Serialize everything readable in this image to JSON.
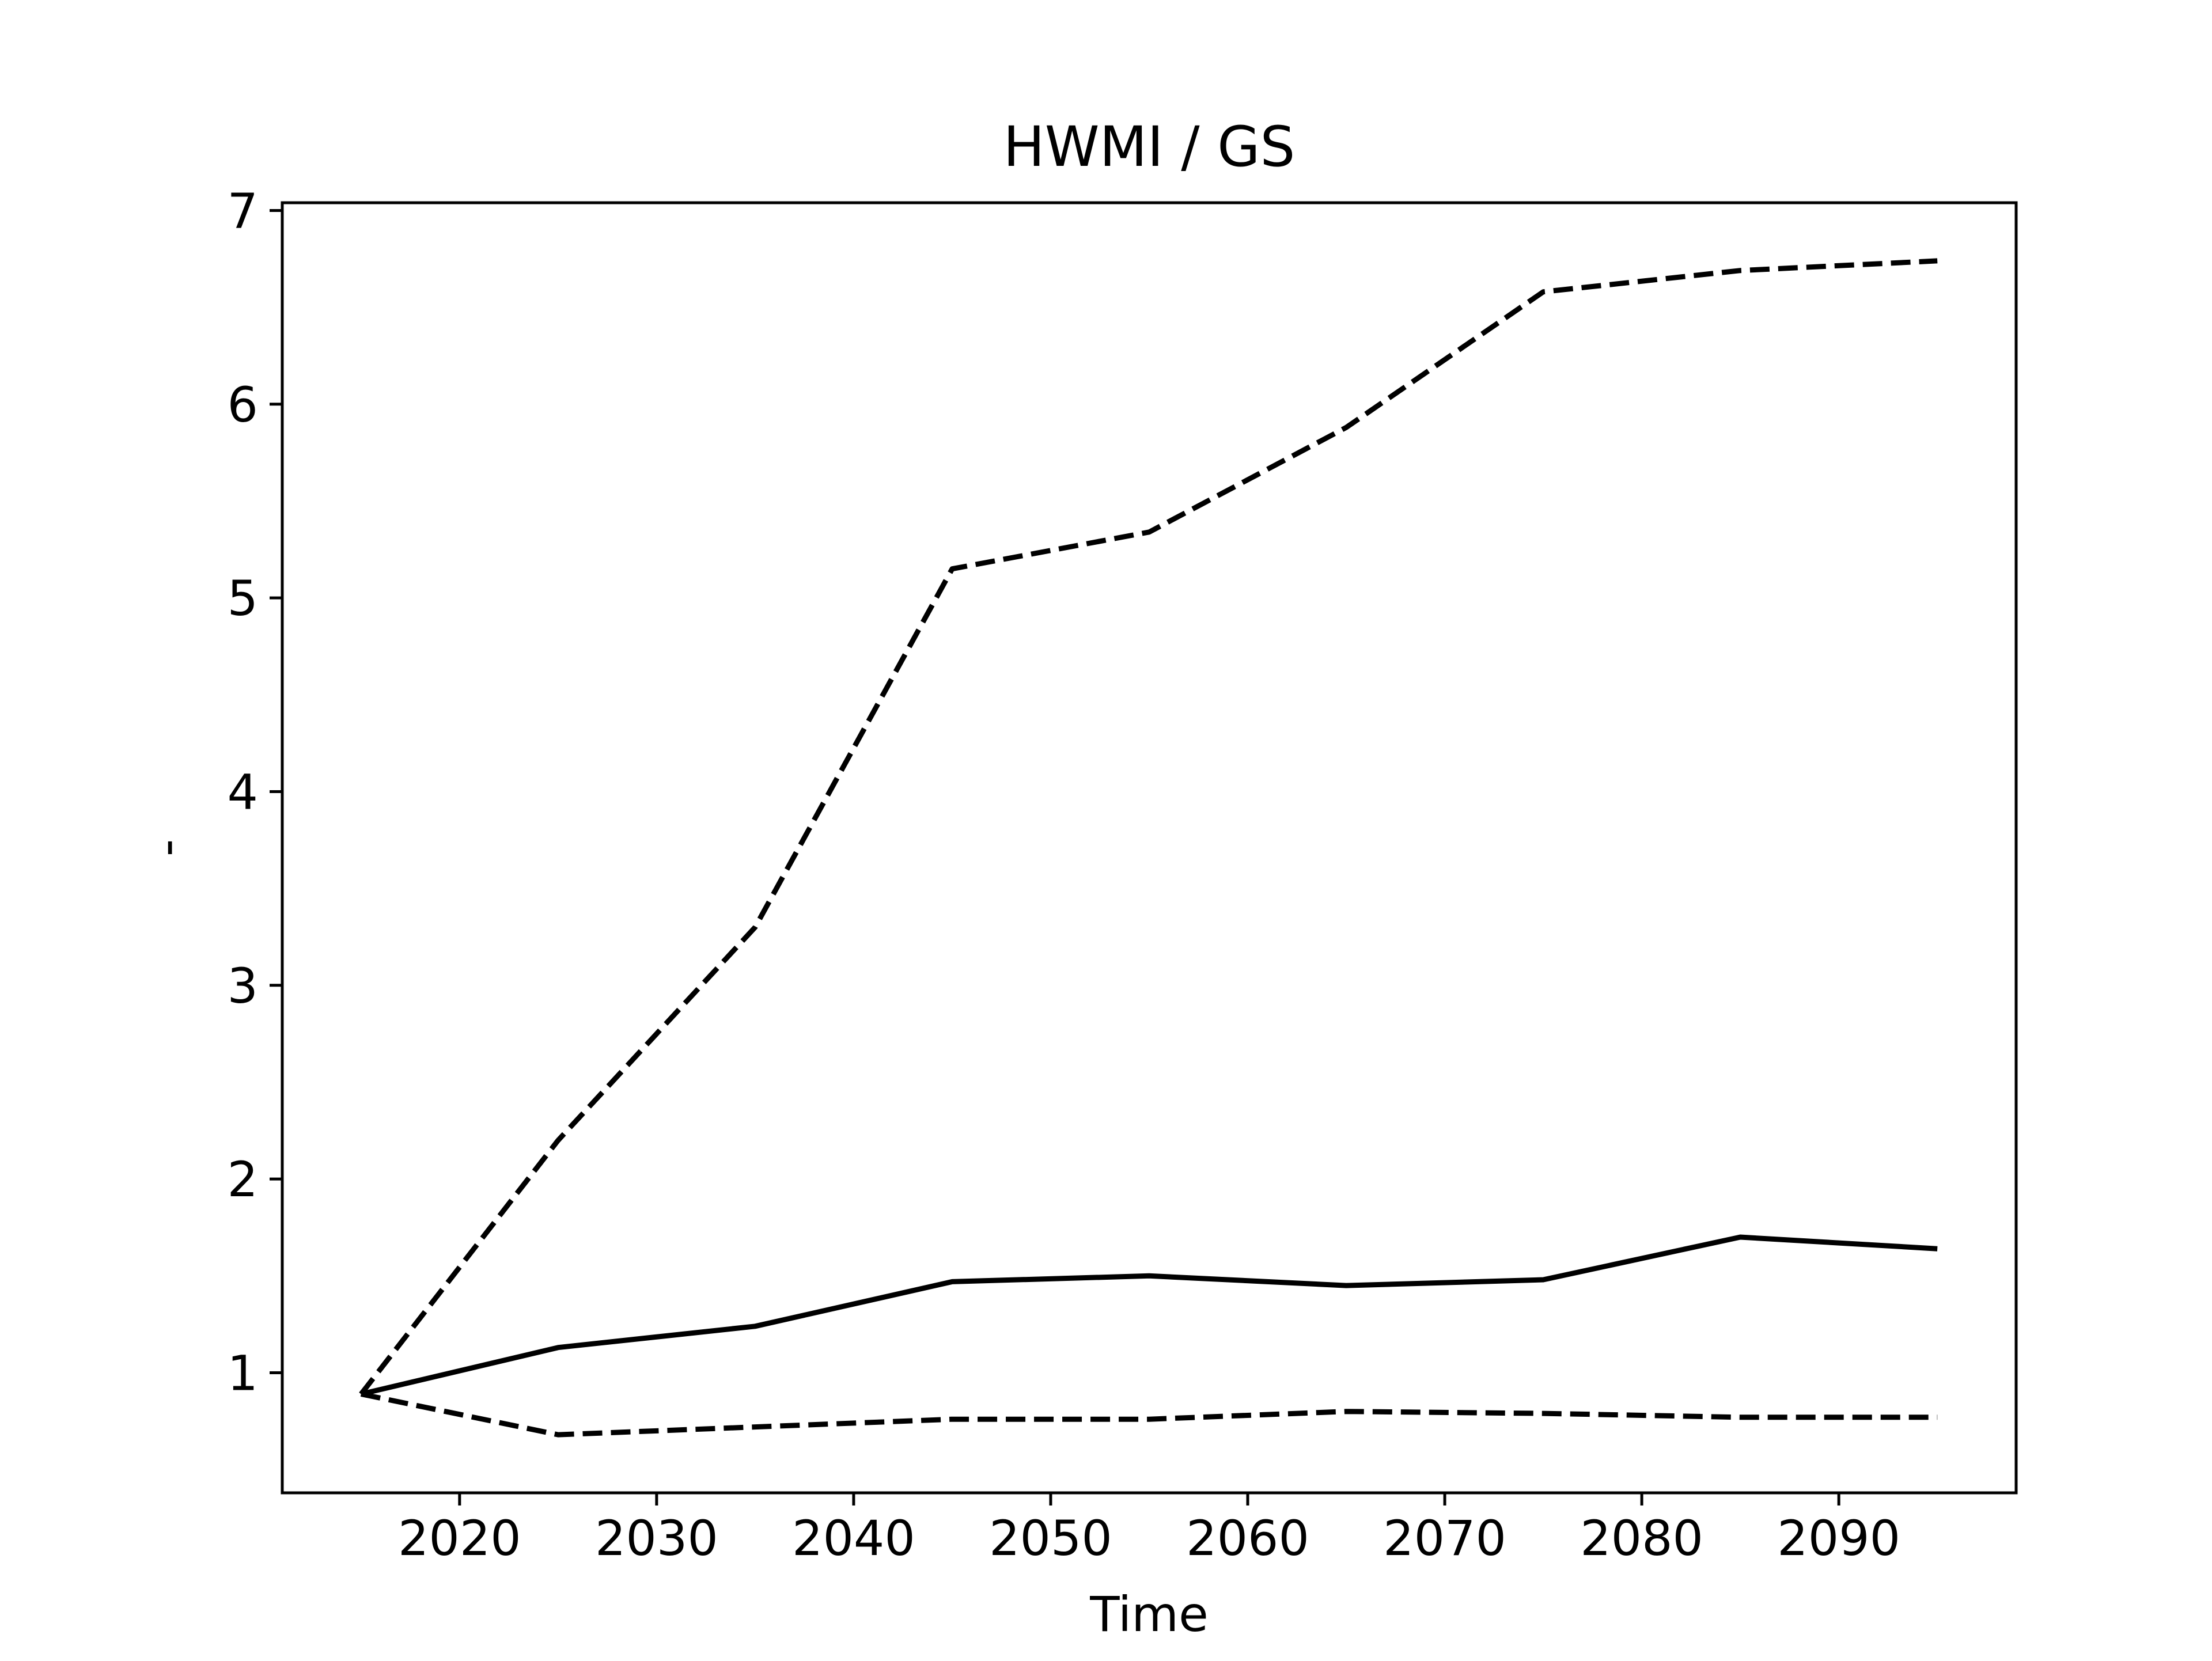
{
  "chart_data": {
    "type": "line",
    "title": "HWMI / GS",
    "xlabel": "Time",
    "ylabel": "-",
    "xlim": [
      2011,
      2099
    ],
    "ylim": [
      0.38,
      7.04
    ],
    "xticks": [
      2020,
      2030,
      2040,
      2050,
      2060,
      2070,
      2080,
      2090
    ],
    "yticks": [
      1,
      2,
      3,
      4,
      5,
      6,
      7
    ],
    "grid": false,
    "legend": "none",
    "x": [
      2015,
      2025,
      2035,
      2045,
      2055,
      2065,
      2075,
      2085,
      2095
    ],
    "series": [
      {
        "style": "solid",
        "color": "#000000",
        "values": [
          0.89,
          1.13,
          1.24,
          1.47,
          1.5,
          1.45,
          1.48,
          1.7,
          1.64
        ]
      },
      {
        "style": "dashed",
        "color": "#000000",
        "values": [
          0.89,
          2.2,
          3.3,
          5.15,
          5.34,
          5.88,
          6.58,
          6.69,
          6.74
        ]
      },
      {
        "style": "dashed",
        "color": "#000000",
        "values": [
          0.89,
          0.68,
          0.72,
          0.76,
          0.76,
          0.8,
          0.79,
          0.77,
          0.77
        ]
      }
    ]
  }
}
